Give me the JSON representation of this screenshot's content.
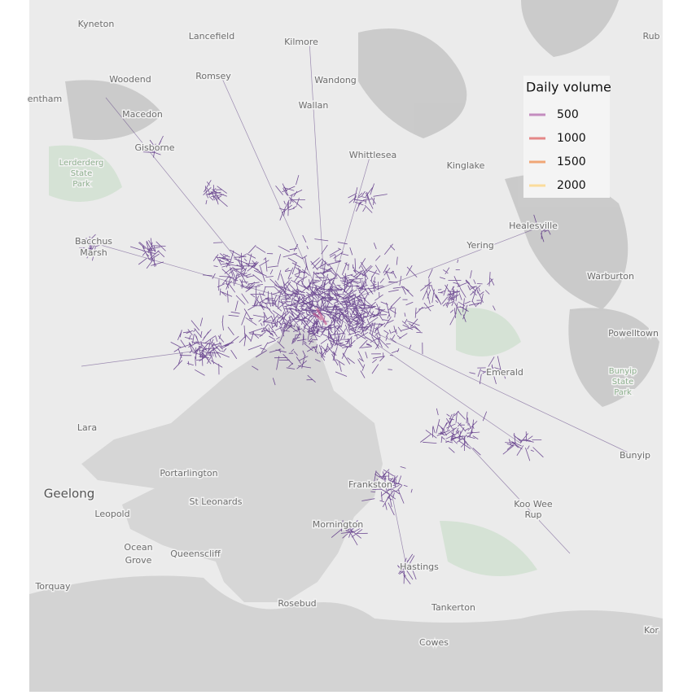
{
  "legend": {
    "title": "Daily volume",
    "items": [
      {
        "value": 500,
        "color": "#c48dbf"
      },
      {
        "value": 1000,
        "color": "#e58787"
      },
      {
        "value": 1500,
        "color": "#f0a676"
      },
      {
        "value": 2000,
        "color": "#fbdc9c"
      }
    ]
  },
  "places": [
    "Kyneton",
    "Lancefield",
    "Kilmore",
    "Woodend",
    "Romsey",
    "Wandong",
    "Wallan",
    "Macedon",
    "entham",
    "Rub",
    "Gisborne",
    "Whittlesea",
    "Kinglake",
    "Lerderderg",
    "State",
    "Park",
    "Healesville",
    "Yering",
    "Bacchus",
    "Marsh",
    "Warburton",
    "Powelltown",
    "Bunyip",
    "State",
    "Park",
    "Emerald",
    "Lara",
    "Bunyip",
    "Portarlington",
    "Geelong",
    "St Leonards",
    "Leopold",
    "Koo Wee",
    "Rup",
    "Ocean",
    "Grove",
    "Queenscliff",
    "Torquay",
    "Hastings",
    "Tankerton",
    "Rosebud",
    "Cowes",
    "Frankston",
    "Mornington",
    "Kor"
  ]
}
